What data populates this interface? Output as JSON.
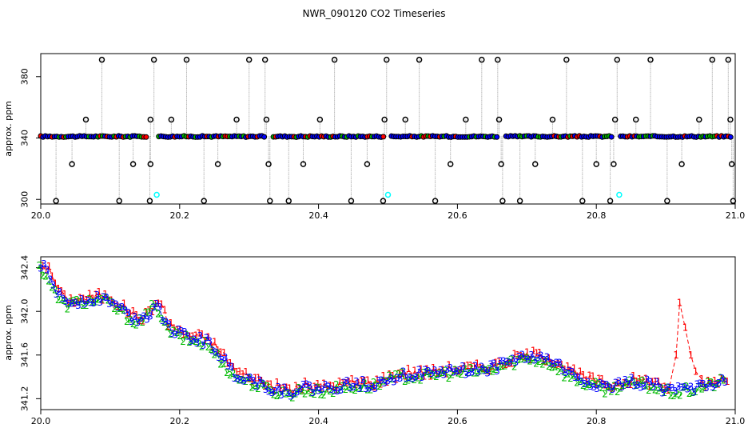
{
  "title": "NWR_090120  CO2 Timeseries",
  "colors": {
    "series1": "#ff0000",
    "series2": "#00bb00",
    "series3": "#0000ff",
    "flag": "#00ffff",
    "raw": "#000000"
  },
  "chart_data": [
    {
      "type": "scatter",
      "name": "top-panel",
      "ylabel": "approx. ppm",
      "xlim": [
        20.0,
        21.0
      ],
      "ylim": [
        297,
        395
      ],
      "x_ticks": [
        20.0,
        20.2,
        20.4,
        20.6,
        20.8,
        21.0
      ],
      "x_tick_labels": [
        "20.0",
        "20.2",
        "20.4",
        "20.6",
        "20.8",
        "21.0"
      ],
      "y_ticks": [
        300,
        340,
        380
      ],
      "y_tick_labels": [
        "300",
        "340",
        "380"
      ],
      "baseline": 341,
      "baseline_segments": [
        [
          20.0,
          20.155
        ],
        [
          20.17,
          20.325
        ],
        [
          20.335,
          20.495
        ],
        [
          20.505,
          20.66
        ],
        [
          20.67,
          20.825
        ],
        [
          20.835,
          20.995
        ]
      ],
      "spikes": [
        {
          "x": 20.088,
          "y": 391
        },
        {
          "x": 20.163,
          "y": 391
        },
        {
          "x": 20.21,
          "y": 391
        },
        {
          "x": 20.3,
          "y": 391
        },
        {
          "x": 20.323,
          "y": 391
        },
        {
          "x": 20.423,
          "y": 391
        },
        {
          "x": 20.498,
          "y": 391
        },
        {
          "x": 20.545,
          "y": 391
        },
        {
          "x": 20.635,
          "y": 391
        },
        {
          "x": 20.658,
          "y": 391
        },
        {
          "x": 20.757,
          "y": 391
        },
        {
          "x": 20.83,
          "y": 391
        },
        {
          "x": 20.878,
          "y": 391
        },
        {
          "x": 20.967,
          "y": 391
        },
        {
          "x": 20.99,
          "y": 391
        },
        {
          "x": 20.065,
          "y": 352
        },
        {
          "x": 20.158,
          "y": 352
        },
        {
          "x": 20.188,
          "y": 352
        },
        {
          "x": 20.282,
          "y": 352
        },
        {
          "x": 20.325,
          "y": 352
        },
        {
          "x": 20.402,
          "y": 352
        },
        {
          "x": 20.495,
          "y": 352
        },
        {
          "x": 20.525,
          "y": 352
        },
        {
          "x": 20.612,
          "y": 352
        },
        {
          "x": 20.66,
          "y": 352
        },
        {
          "x": 20.737,
          "y": 352
        },
        {
          "x": 20.827,
          "y": 352
        },
        {
          "x": 20.857,
          "y": 352
        },
        {
          "x": 20.948,
          "y": 352
        },
        {
          "x": 20.993,
          "y": 352
        },
        {
          "x": 20.045,
          "y": 323
        },
        {
          "x": 20.133,
          "y": 323
        },
        {
          "x": 20.158,
          "y": 323
        },
        {
          "x": 20.255,
          "y": 323
        },
        {
          "x": 20.328,
          "y": 323
        },
        {
          "x": 20.378,
          "y": 323
        },
        {
          "x": 20.47,
          "y": 323
        },
        {
          "x": 20.59,
          "y": 323
        },
        {
          "x": 20.663,
          "y": 323
        },
        {
          "x": 20.712,
          "y": 323
        },
        {
          "x": 20.8,
          "y": 323
        },
        {
          "x": 20.825,
          "y": 323
        },
        {
          "x": 20.923,
          "y": 323
        },
        {
          "x": 20.995,
          "y": 323
        },
        {
          "x": 20.022,
          "y": 299
        },
        {
          "x": 20.113,
          "y": 299
        },
        {
          "x": 20.157,
          "y": 299
        },
        {
          "x": 20.235,
          "y": 299
        },
        {
          "x": 20.33,
          "y": 299
        },
        {
          "x": 20.357,
          "y": 299
        },
        {
          "x": 20.447,
          "y": 299
        },
        {
          "x": 20.493,
          "y": 299
        },
        {
          "x": 20.568,
          "y": 299
        },
        {
          "x": 20.665,
          "y": 299
        },
        {
          "x": 20.69,
          "y": 299
        },
        {
          "x": 20.78,
          "y": 299
        },
        {
          "x": 20.82,
          "y": 299
        },
        {
          "x": 20.902,
          "y": 299
        },
        {
          "x": 20.997,
          "y": 299
        }
      ],
      "flagged_points": [
        {
          "x": 20.167,
          "y": 303
        },
        {
          "x": 20.5,
          "y": 303
        },
        {
          "x": 20.833,
          "y": 303
        }
      ]
    },
    {
      "type": "line",
      "name": "bottom-panel",
      "ylabel": "approx. ppm",
      "xlim": [
        20.0,
        21.0
      ],
      "ylim": [
        341.1,
        342.5
      ],
      "x_ticks": [
        20.0,
        20.2,
        20.4,
        20.6,
        20.8,
        21.0
      ],
      "x_tick_labels": [
        "20.0",
        "20.2",
        "20.4",
        "20.6",
        "20.8",
        "21.0"
      ],
      "y_ticks": [
        341.2,
        341.6,
        342.0,
        342.4
      ],
      "y_tick_labels": [
        "341.2",
        "341.6",
        "342.0",
        "342.4"
      ],
      "series": [
        {
          "marker": "1",
          "color": "#ff0000",
          "offset_x": 0.003,
          "anomaly": [
            [
              20.905,
              341.3
            ],
            [
              20.915,
              341.6
            ],
            [
              20.92,
              342.08
            ],
            [
              20.928,
              341.85
            ],
            [
              20.936,
              341.6
            ],
            [
              20.943,
              341.45
            ],
            [
              20.952,
              341.38
            ]
          ]
        },
        {
          "marker": "2",
          "color": "#00bb00",
          "offset_x": -0.002
        },
        {
          "marker": "3",
          "color": "#0000ff",
          "offset_x": 0.0
        }
      ],
      "trend": [
        [
          20.0,
          342.42
        ],
        [
          20.01,
          342.35
        ],
        [
          20.02,
          342.22
        ],
        [
          20.03,
          342.1
        ],
        [
          20.04,
          342.08
        ],
        [
          20.06,
          342.1
        ],
        [
          20.08,
          342.12
        ],
        [
          20.1,
          342.1
        ],
        [
          20.115,
          342.02
        ],
        [
          20.13,
          341.95
        ],
        [
          20.145,
          341.92
        ],
        [
          20.155,
          341.97
        ],
        [
          20.167,
          342.1
        ],
        [
          20.18,
          341.88
        ],
        [
          20.2,
          341.78
        ],
        [
          20.22,
          341.75
        ],
        [
          20.24,
          341.72
        ],
        [
          20.26,
          341.58
        ],
        [
          20.28,
          341.42
        ],
        [
          20.3,
          341.38
        ],
        [
          20.32,
          341.32
        ],
        [
          20.34,
          341.28
        ],
        [
          20.36,
          341.26
        ],
        [
          20.38,
          341.3
        ],
        [
          20.4,
          341.28
        ],
        [
          20.42,
          341.3
        ],
        [
          20.44,
          341.32
        ],
        [
          20.46,
          341.33
        ],
        [
          20.48,
          341.33
        ],
        [
          20.5,
          341.38
        ],
        [
          20.52,
          341.42
        ],
        [
          20.54,
          341.42
        ],
        [
          20.56,
          341.42
        ],
        [
          20.58,
          341.45
        ],
        [
          20.6,
          341.45
        ],
        [
          20.62,
          341.46
        ],
        [
          20.64,
          341.47
        ],
        [
          20.66,
          341.5
        ],
        [
          20.68,
          341.55
        ],
        [
          20.7,
          341.58
        ],
        [
          20.72,
          341.57
        ],
        [
          20.74,
          341.53
        ],
        [
          20.76,
          341.43
        ],
        [
          20.78,
          341.37
        ],
        [
          20.8,
          341.33
        ],
        [
          20.82,
          341.3
        ],
        [
          20.84,
          341.34
        ],
        [
          20.86,
          341.35
        ],
        [
          20.88,
          341.33
        ],
        [
          20.9,
          341.28
        ],
        [
          20.92,
          341.27
        ],
        [
          20.94,
          341.3
        ],
        [
          20.96,
          341.33
        ],
        [
          20.98,
          341.37
        ],
        [
          20.99,
          341.38
        ]
      ]
    }
  ]
}
